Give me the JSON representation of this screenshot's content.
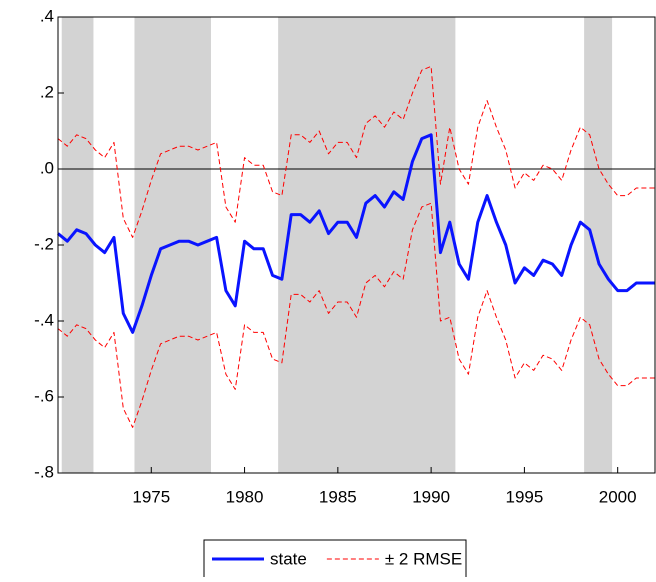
{
  "chart_data": {
    "type": "line",
    "x": [
      1970,
      1970.5,
      1971,
      1971.5,
      1972,
      1972.5,
      1973,
      1973.5,
      1974,
      1974.5,
      1975,
      1975.5,
      1976,
      1976.5,
      1977,
      1977.5,
      1978,
      1978.5,
      1979,
      1979.5,
      1980,
      1980.5,
      1981,
      1981.5,
      1982,
      1982.5,
      1983,
      1983.5,
      1984,
      1984.5,
      1985,
      1985.5,
      1986,
      1986.5,
      1987,
      1987.5,
      1988,
      1988.5,
      1989,
      1989.5,
      1990,
      1990.5,
      1991,
      1991.5,
      1992,
      1992.5,
      1993,
      1993.5,
      1994,
      1994.5,
      1995,
      1995.5,
      1996,
      1996.5,
      1997,
      1997.5,
      1998,
      1998.5,
      1999,
      1999.5,
      2000,
      2000.5,
      2001,
      2001.5,
      2002
    ],
    "series": [
      {
        "name": "state",
        "color": "#0a14ff",
        "width": 3,
        "dashed": false,
        "values": [
          -0.17,
          -0.19,
          -0.16,
          -0.17,
          -0.2,
          -0.22,
          -0.18,
          -0.38,
          -0.43,
          -0.36,
          -0.28,
          -0.21,
          -0.2,
          -0.19,
          -0.19,
          -0.2,
          -0.19,
          -0.18,
          -0.32,
          -0.36,
          -0.19,
          -0.21,
          -0.21,
          -0.28,
          -0.29,
          -0.12,
          -0.12,
          -0.14,
          -0.11,
          -0.17,
          -0.14,
          -0.14,
          -0.18,
          -0.09,
          -0.07,
          -0.1,
          -0.06,
          -0.08,
          0.02,
          0.08,
          0.09,
          -0.22,
          -0.14,
          -0.25,
          -0.29,
          -0.14,
          -0.07,
          -0.14,
          -0.2,
          -0.3,
          -0.26,
          -0.28,
          -0.24,
          -0.25,
          -0.28,
          -0.2,
          -0.14,
          -0.16,
          -0.25,
          -0.29,
          -0.32,
          -0.32,
          -0.3,
          -0.3,
          -0.3
        ]
      },
      {
        "name": "± 2 RMSE",
        "color": "#ff0000",
        "width": 1,
        "dashed": true,
        "values": [
          0.08,
          0.06,
          0.09,
          0.08,
          0.05,
          0.03,
          0.07,
          -0.13,
          -0.18,
          -0.11,
          -0.03,
          0.04,
          0.05,
          0.06,
          0.06,
          0.05,
          0.06,
          0.07,
          -0.1,
          -0.14,
          0.03,
          0.01,
          0.01,
          -0.06,
          -0.07,
          0.09,
          0.09,
          0.07,
          0.1,
          0.04,
          0.07,
          0.07,
          0.03,
          0.12,
          0.14,
          0.11,
          0.15,
          0.13,
          0.2,
          0.26,
          0.27,
          -0.04,
          0.11,
          0.0,
          -0.04,
          0.11,
          0.18,
          0.11,
          0.05,
          -0.05,
          -0.01,
          -0.03,
          0.01,
          0.0,
          -0.03,
          0.05,
          0.11,
          0.09,
          0.0,
          -0.04,
          -0.07,
          -0.07,
          -0.05,
          -0.05,
          -0.05
        ]
      },
      {
        "color": "#ff0000",
        "width": 1,
        "dashed": true,
        "values": [
          -0.42,
          -0.44,
          -0.41,
          -0.42,
          -0.45,
          -0.47,
          -0.43,
          -0.63,
          -0.68,
          -0.61,
          -0.53,
          -0.46,
          -0.45,
          -0.44,
          -0.44,
          -0.45,
          -0.44,
          -0.43,
          -0.54,
          -0.58,
          -0.41,
          -0.43,
          -0.43,
          -0.5,
          -0.51,
          -0.33,
          -0.33,
          -0.35,
          -0.32,
          -0.38,
          -0.35,
          -0.35,
          -0.39,
          -0.3,
          -0.28,
          -0.31,
          -0.27,
          -0.29,
          -0.16,
          -0.1,
          -0.09,
          -0.4,
          -0.39,
          -0.5,
          -0.54,
          -0.39,
          -0.32,
          -0.39,
          -0.45,
          -0.55,
          -0.51,
          -0.53,
          -0.49,
          -0.5,
          -0.53,
          -0.45,
          -0.39,
          -0.41,
          -0.5,
          -0.54,
          -0.57,
          -0.57,
          -0.55,
          -0.55,
          -0.55
        ]
      }
    ],
    "shaded_periods": [
      [
        1970.2,
        1971.9
      ],
      [
        1974.1,
        1978.2
      ],
      [
        1981.8,
        1991.3
      ],
      [
        1998.2,
        1999.7
      ]
    ],
    "shade_color": "#d3d3d3",
    "xlim": [
      1970,
      2002
    ],
    "xticks": [
      1975,
      1980,
      1985,
      1990,
      1995,
      2000
    ],
    "ylim": [
      -0.8,
      0.4
    ],
    "yticks": [
      {
        "value": -0.8,
        "label": "-.8"
      },
      {
        "value": -0.6,
        "label": "-.6"
      },
      {
        "value": -0.4,
        "label": "-.4"
      },
      {
        "value": -0.2,
        "label": "-.2"
      },
      {
        "value": 0,
        "label": ".0"
      },
      {
        "value": 0.2,
        "label": ".2"
      },
      {
        "value": 0.4,
        "label": ".4"
      }
    ],
    "zero_line": true,
    "grid": false,
    "legend": "bottom"
  }
}
